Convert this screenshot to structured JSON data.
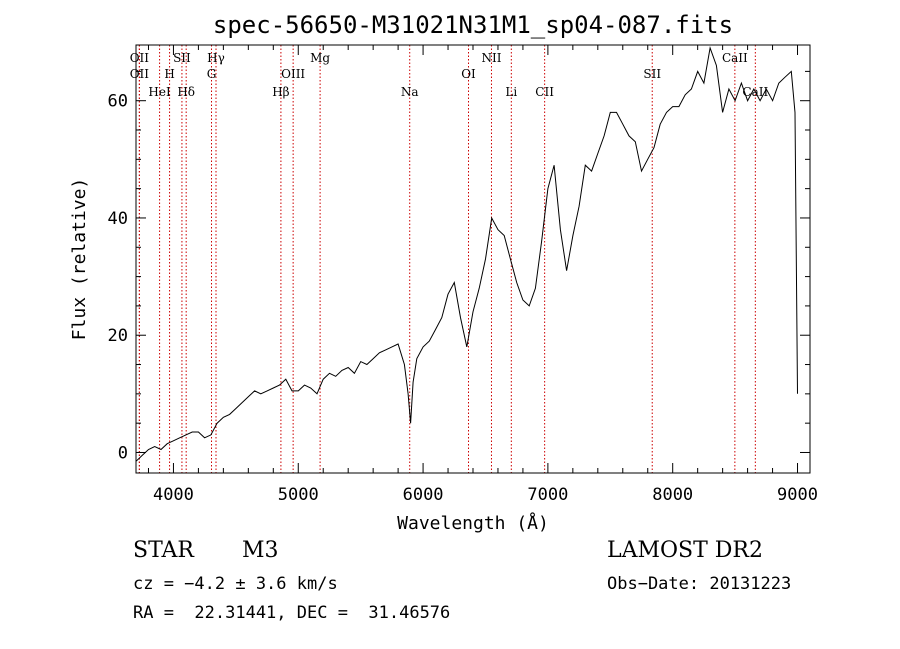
{
  "chart_data": {
    "type": "line",
    "title": "spec-56650-M31021N31M1_sp04-087.fits",
    "xlabel": "Wavelength (Å)",
    "ylabel": "Flux (relative)",
    "xlim": [
      3700,
      9100
    ],
    "ylim": [
      -3.5,
      69.5
    ],
    "x_ticks": [
      4000,
      5000,
      6000,
      7000,
      8000,
      9000
    ],
    "y_ticks": [
      0,
      20,
      40,
      60
    ],
    "grid": false,
    "line_color": "#000000",
    "marker_color": "#cc0000",
    "series": [
      {
        "name": "flux",
        "x": [
          3700,
          3750,
          3800,
          3850,
          3900,
          3950,
          4000,
          4050,
          4100,
          4150,
          4200,
          4250,
          4300,
          4350,
          4400,
          4450,
          4500,
          4550,
          4600,
          4650,
          4700,
          4750,
          4800,
          4850,
          4900,
          4950,
          5000,
          5050,
          5100,
          5150,
          5200,
          5250,
          5300,
          5350,
          5400,
          5450,
          5500,
          5550,
          5600,
          5650,
          5700,
          5750,
          5800,
          5850,
          5880,
          5900,
          5920,
          5950,
          6000,
          6050,
          6100,
          6150,
          6200,
          6250,
          6300,
          6350,
          6400,
          6450,
          6500,
          6550,
          6600,
          6650,
          6700,
          6750,
          6800,
          6850,
          6900,
          6950,
          7000,
          7050,
          7100,
          7150,
          7200,
          7250,
          7300,
          7350,
          7400,
          7450,
          7500,
          7550,
          7600,
          7650,
          7700,
          7750,
          7800,
          7850,
          7900,
          7950,
          8000,
          8050,
          8100,
          8150,
          8200,
          8250,
          8300,
          8350,
          8400,
          8450,
          8500,
          8550,
          8600,
          8650,
          8700,
          8750,
          8800,
          8850,
          8900,
          8950,
          8980,
          9000
        ],
        "y": [
          -1.5,
          -0.5,
          0.5,
          1,
          0.5,
          1.5,
          2,
          2.5,
          3,
          3.5,
          3.5,
          2.5,
          3,
          5,
          6,
          6.5,
          7.5,
          8.5,
          9.5,
          10.5,
          10,
          10.5,
          11,
          11.5,
          12.5,
          10.5,
          10.5,
          11.5,
          11,
          10,
          12.5,
          13.5,
          13,
          14,
          14.5,
          13.5,
          15.5,
          15,
          16,
          17,
          17.5,
          18,
          18.5,
          15,
          10,
          5,
          12,
          16,
          18,
          19,
          21,
          23,
          27,
          29,
          23,
          18,
          24,
          28,
          33,
          40,
          38,
          37,
          33,
          29,
          26,
          25,
          28,
          36,
          45,
          49,
          38,
          31,
          37,
          42,
          49,
          48,
          51,
          54,
          58,
          58,
          56,
          54,
          53,
          48,
          50,
          52,
          56,
          58,
          59,
          59,
          61,
          62,
          65,
          63,
          69,
          66,
          58,
          62,
          60,
          63,
          60,
          62,
          60,
          62,
          60,
          63,
          64,
          65,
          58,
          10
        ]
      }
    ],
    "line_markers": [
      {
        "wavelength": 3727,
        "label": "OII",
        "row": 1
      },
      {
        "wavelength": 3727,
        "label": "OII",
        "row": 2
      },
      {
        "wavelength": 3889,
        "label": "HeI",
        "row": 3
      },
      {
        "wavelength": 3969,
        "label": "H",
        "row": 2
      },
      {
        "wavelength": 4068,
        "label": "SII",
        "row": 1
      },
      {
        "wavelength": 4102,
        "label": "Hδ",
        "row": 3
      },
      {
        "wavelength": 4305,
        "label": "G",
        "row": 2
      },
      {
        "wavelength": 4341,
        "label": "Hγ",
        "row": 1
      },
      {
        "wavelength": 4861,
        "label": "Hβ",
        "row": 3
      },
      {
        "wavelength": 4959,
        "label": "OIII",
        "row": 2
      },
      {
        "wavelength": 5175,
        "label": "Mg",
        "row": 1
      },
      {
        "wavelength": 5893,
        "label": "Na",
        "row": 3
      },
      {
        "wavelength": 6364,
        "label": "OI",
        "row": 2
      },
      {
        "wavelength": 6548,
        "label": "NII",
        "row": 1
      },
      {
        "wavelength": 6707,
        "label": "Li",
        "row": 3
      },
      {
        "wavelength": 6974,
        "label": "CII",
        "row": 3
      },
      {
        "wavelength": 7836,
        "label": "SII",
        "row": 2
      },
      {
        "wavelength": 8498,
        "label": "CaII",
        "row": 1
      },
      {
        "wavelength": 8662,
        "label": "CaII",
        "row": 3
      }
    ]
  },
  "footer": {
    "class_label": "STAR",
    "subclass": "M3",
    "cz": "cz = −4.2 ± 3.6 km/s",
    "radec": "RA =  22.31441, DEC =  31.46576",
    "survey": "LAMOST DR2",
    "obs_date": "Obs−Date: 20131223"
  }
}
